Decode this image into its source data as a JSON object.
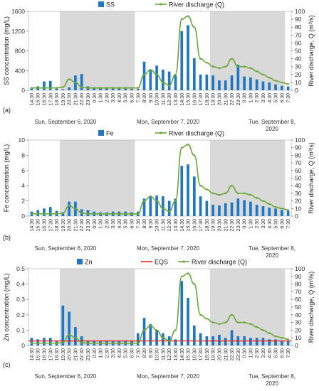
{
  "times": [
    "14:30",
    "15:30",
    "16:30",
    "17:30",
    "18:30",
    "19:30",
    "20:30",
    "21:30",
    "22:30",
    "23:30",
    "0:30",
    "1:30",
    "2:30",
    "3:30",
    "4:30",
    "5:30",
    "6:30",
    "7:30",
    "8:30",
    "9:30",
    "10:30",
    "11:30",
    "12:30",
    "13:30",
    "14:30",
    "15:30",
    "16:30",
    "17:30",
    "18:30",
    "19:30",
    "20:30",
    "21:30",
    "22:30",
    "23:30",
    "0:30",
    "1:30",
    "2:30",
    "3:30",
    "4:30",
    "5:30",
    "6:30",
    "7:30"
  ],
  "day_labels": [
    "Sun, September 6, 2020",
    "Mon, September 7, 2020",
    "Tue, September 8,\n2020"
  ],
  "discharge_name": "River discharge (Q)",
  "colors": {
    "bar": "#1f77c4",
    "discharge": "#6aa83a",
    "eqs": "#e8281e",
    "night": "#d9d9d9"
  },
  "chart_data": [
    {
      "type": "bar",
      "panel_label": "(a)",
      "bar_series_name": "SS",
      "ylabel": "SS concentration (mg/L)",
      "y2label": "River discharge, Q (m³/s)",
      "ylim": [
        0,
        1600
      ],
      "yticks": [
        0,
        400,
        800,
        1200,
        1600
      ],
      "y2lim": [
        0,
        100
      ],
      "y2ticks": [
        0,
        10,
        20,
        30,
        40,
        50,
        60,
        70,
        80,
        90,
        100
      ],
      "values": [
        40,
        80,
        180,
        190,
        40,
        20,
        60,
        300,
        330,
        80,
        60,
        60,
        50,
        50,
        40,
        40,
        30,
        30,
        580,
        420,
        500,
        420,
        380,
        300,
        1200,
        1320,
        650,
        320,
        320,
        300,
        200,
        200,
        300,
        520,
        280,
        260,
        220,
        180,
        160,
        120,
        90,
        80
      ]
    },
    {
      "type": "bar",
      "panel_label": "(b)",
      "bar_series_name": "Fe",
      "ylabel": "Fe concentration (mg/L)",
      "y2label": "River discharge, Q (m³/s)",
      "ylim": [
        0,
        10
      ],
      "yticks": [
        0,
        2,
        4,
        6,
        8,
        10
      ],
      "y2lim": [
        0,
        100
      ],
      "y2ticks": [
        0,
        10,
        20,
        30,
        40,
        50,
        60,
        70,
        80,
        90,
        100
      ],
      "values": [
        0.6,
        0.8,
        1.0,
        1.2,
        0.7,
        0.5,
        1.9,
        1.9,
        0.9,
        0.8,
        0.6,
        0.5,
        0.5,
        0.6,
        0.6,
        0.6,
        0.5,
        0.6,
        2.3,
        2.5,
        2.7,
        2.6,
        2.0,
        2.3,
        6.6,
        6.8,
        5.2,
        2.6,
        2.0,
        1.5,
        1.4,
        1.7,
        1.8,
        2.3,
        2.1,
        1.9,
        1.5,
        1.3,
        1.1,
        1.0,
        0.8,
        0.7
      ]
    },
    {
      "type": "bar",
      "panel_label": "(c)",
      "bar_series_name": "Zn",
      "eqs_name": "EQS",
      "eqs_value": 0.03,
      "ylabel": "Zn concentration (mg/L)",
      "y2label": "River discharge, Q (m³/s)",
      "ylim": [
        0,
        0.5
      ],
      "yticks": [
        0,
        0.1,
        0.2,
        0.3,
        0.4,
        0.5
      ],
      "y2lim": [
        0,
        100
      ],
      "y2ticks": [
        0,
        10,
        20,
        30,
        40,
        50,
        60,
        70,
        80,
        90,
        100
      ],
      "values": [
        0.05,
        0.04,
        0.05,
        0.05,
        0.03,
        0.26,
        0.22,
        0.12,
        0.06,
        0.03,
        0.03,
        0.03,
        0.03,
        0.03,
        0.03,
        0.03,
        0.03,
        0.08,
        0.18,
        0.14,
        0.1,
        0.08,
        0.06,
        0.04,
        0.42,
        0.31,
        0.13,
        0.08,
        0.06,
        0.06,
        0.07,
        0.05,
        0.1,
        0.06,
        0.06,
        0.05,
        0.05,
        0.05,
        0.04,
        0.04,
        0.03,
        0.03
      ]
    }
  ],
  "discharge_q": [
    3,
    3,
    3,
    3,
    3,
    4,
    14,
    10,
    4,
    3,
    3,
    3,
    3,
    3,
    3,
    3,
    3,
    3,
    20,
    26,
    20,
    10,
    6,
    20,
    90,
    94,
    80,
    40,
    35,
    30,
    28,
    30,
    40,
    30,
    30,
    28,
    24,
    20,
    16,
    12,
    10,
    8
  ]
}
